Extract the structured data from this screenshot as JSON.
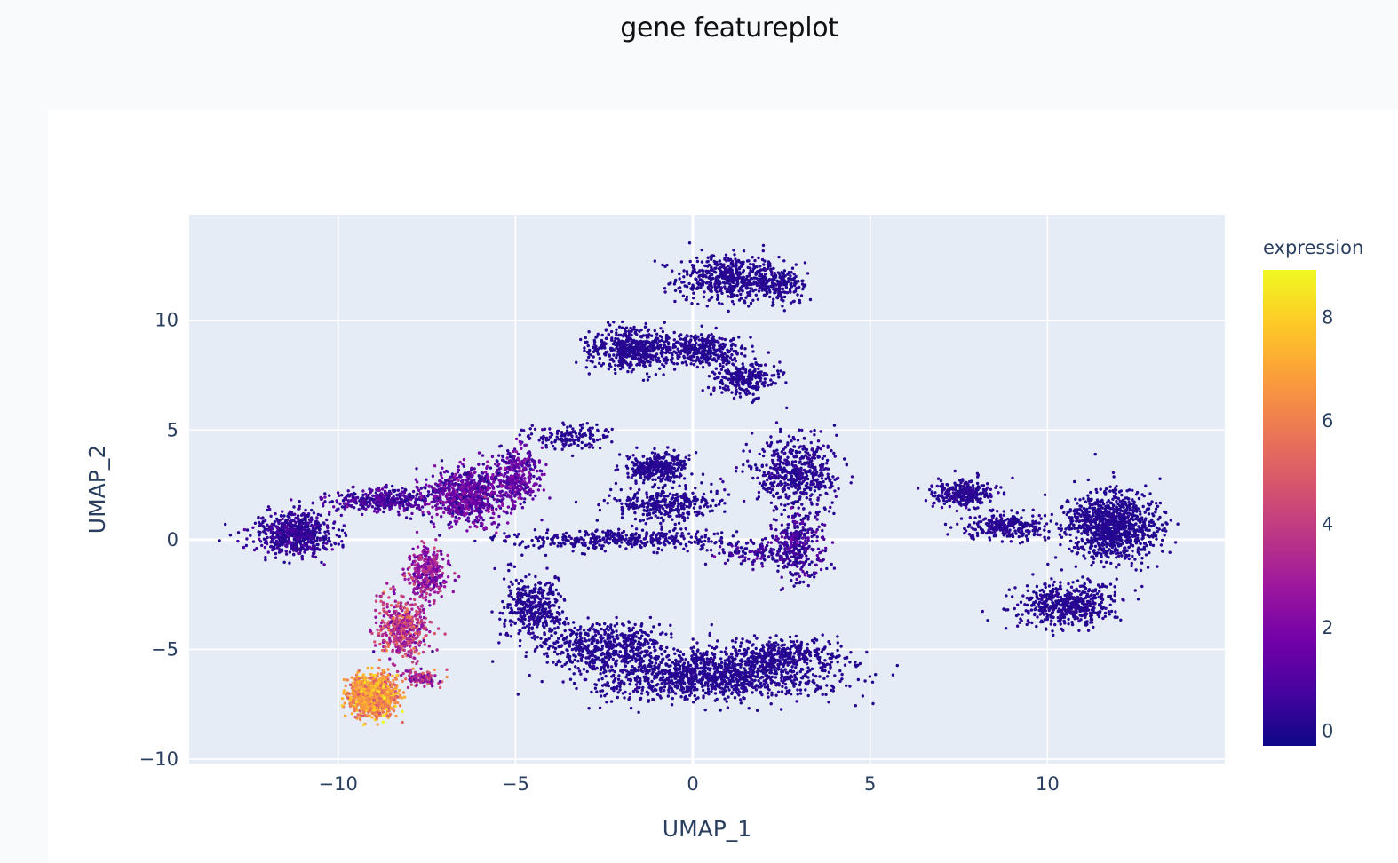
{
  "page": {
    "title": "gene featureplot"
  },
  "chart_data": {
    "type": "scatter",
    "title": "gene featureplot",
    "xlabel": "UMAP_1",
    "ylabel": "UMAP_2",
    "xlim": [
      -14.2,
      15
    ],
    "ylim": [
      -10.2,
      14.8
    ],
    "xticks": [
      -10,
      -5,
      0,
      5,
      10
    ],
    "xtick_labels": [
      "−10",
      "−5",
      "0",
      "5",
      "10"
    ],
    "yticks": [
      -10,
      -5,
      0,
      5,
      10
    ],
    "ytick_labels": [
      "−10",
      "−5",
      "0",
      "5",
      "10"
    ],
    "grid": true,
    "colorbar": {
      "title": "expression",
      "range": [
        -0.3,
        8.9
      ],
      "ticks": [
        0,
        2,
        4,
        6,
        8
      ],
      "tick_labels": [
        "0",
        "2",
        "4",
        "6",
        "8"
      ],
      "colorscale": [
        "#0d0887",
        "#46039f",
        "#7201a8",
        "#9c179e",
        "#bd3786",
        "#d8576b",
        "#ed7953",
        "#fb9f3a",
        "#fdca26",
        "#f0f921"
      ]
    },
    "plot_background": "#e5ecf6",
    "clusters": [
      {
        "cx": 1.0,
        "cy": 11.9,
        "sx": 1.2,
        "sy": 0.9,
        "n": 520,
        "mean": 0.15,
        "sd": 0.1
      },
      {
        "cx": 2.5,
        "cy": 11.6,
        "sx": 0.6,
        "sy": 0.7,
        "n": 160,
        "mean": 0.15,
        "sd": 0.1
      },
      {
        "cx": -1.7,
        "cy": 8.7,
        "sx": 1.0,
        "sy": 0.8,
        "n": 480,
        "mean": 0.15,
        "sd": 0.1
      },
      {
        "cx": 0.2,
        "cy": 8.7,
        "sx": 1.0,
        "sy": 0.6,
        "n": 360,
        "mean": 0.15,
        "sd": 0.1
      },
      {
        "cx": 1.5,
        "cy": 7.3,
        "sx": 0.8,
        "sy": 0.7,
        "n": 260,
        "mean": 0.15,
        "sd": 0.1
      },
      {
        "cx": 2.9,
        "cy": 3.0,
        "sx": 1.0,
        "sy": 1.3,
        "n": 520,
        "mean": 0.2,
        "sd": 0.2
      },
      {
        "cx": 3.0,
        "cy": -0.3,
        "sx": 0.6,
        "sy": 1.2,
        "n": 320,
        "mean": 0.4,
        "sd": 0.6
      },
      {
        "cx": 1.7,
        "cy": -0.6,
        "sx": 1.0,
        "sy": 0.5,
        "n": 120,
        "mean": 0.4,
        "sd": 0.6
      },
      {
        "cx": -1.0,
        "cy": 3.3,
        "sx": 0.7,
        "sy": 0.6,
        "n": 300,
        "mean": 0.15,
        "sd": 0.1
      },
      {
        "cx": -0.8,
        "cy": 1.6,
        "sx": 1.3,
        "sy": 0.6,
        "n": 320,
        "mean": 0.15,
        "sd": 0.1
      },
      {
        "cx": -2.0,
        "cy": 0.0,
        "sx": 2.5,
        "sy": 0.35,
        "n": 380,
        "mean": 0.15,
        "sd": 0.1
      },
      {
        "cx": -3.5,
        "cy": 4.7,
        "sx": 1.0,
        "sy": 0.5,
        "n": 140,
        "mean": 0.2,
        "sd": 0.1
      },
      {
        "cx": -4.5,
        "cy": -3.0,
        "sx": 0.7,
        "sy": 1.2,
        "n": 360,
        "mean": 0.15,
        "sd": 0.1
      },
      {
        "cx": -2.5,
        "cy": -4.8,
        "sx": 1.6,
        "sy": 0.8,
        "n": 520,
        "mean": 0.15,
        "sd": 0.1
      },
      {
        "cx": 0.5,
        "cy": -6.2,
        "sx": 2.8,
        "sy": 0.9,
        "n": 1200,
        "mean": 0.15,
        "sd": 0.1
      },
      {
        "cx": 2.5,
        "cy": -5.2,
        "sx": 1.4,
        "sy": 0.6,
        "n": 360,
        "mean": 0.15,
        "sd": 0.1
      },
      {
        "cx": -11.2,
        "cy": 0.3,
        "sx": 0.9,
        "sy": 0.8,
        "n": 620,
        "mean": 0.4,
        "sd": 0.4
      },
      {
        "cx": -8.8,
        "cy": 1.8,
        "sx": 1.2,
        "sy": 0.45,
        "n": 360,
        "mean": 0.7,
        "sd": 0.5
      },
      {
        "cx": -6.4,
        "cy": 2.0,
        "sx": 0.9,
        "sy": 1.0,
        "n": 700,
        "mean": 1.4,
        "sd": 0.8
      },
      {
        "cx": -5.0,
        "cy": 2.8,
        "sx": 0.6,
        "sy": 1.2,
        "n": 340,
        "mean": 1.2,
        "sd": 0.7
      },
      {
        "cx": -7.5,
        "cy": -1.5,
        "sx": 0.45,
        "sy": 1.0,
        "n": 340,
        "mean": 2.6,
        "sd": 1.0
      },
      {
        "cx": -8.2,
        "cy": -4.0,
        "sx": 0.6,
        "sy": 1.2,
        "n": 480,
        "mean": 3.8,
        "sd": 1.1
      },
      {
        "cx": -9.0,
        "cy": -7.1,
        "sx": 0.55,
        "sy": 0.75,
        "n": 1000,
        "mean": 6.5,
        "sd": 1.0
      },
      {
        "cx": -7.6,
        "cy": -6.3,
        "sx": 0.4,
        "sy": 0.3,
        "n": 120,
        "mean": 3.5,
        "sd": 1.4
      },
      {
        "cx": 7.6,
        "cy": 2.1,
        "sx": 0.7,
        "sy": 0.5,
        "n": 280,
        "mean": 0.2,
        "sd": 0.2
      },
      {
        "cx": 8.8,
        "cy": 0.6,
        "sx": 1.0,
        "sy": 0.5,
        "n": 280,
        "mean": 0.2,
        "sd": 0.2
      },
      {
        "cx": 11.8,
        "cy": 0.6,
        "sx": 1.1,
        "sy": 1.3,
        "n": 1000,
        "mean": 0.1,
        "sd": 0.1
      },
      {
        "cx": 10.5,
        "cy": -3.0,
        "sx": 1.1,
        "sy": 0.8,
        "n": 520,
        "mean": 0.15,
        "sd": 0.15
      }
    ]
  }
}
